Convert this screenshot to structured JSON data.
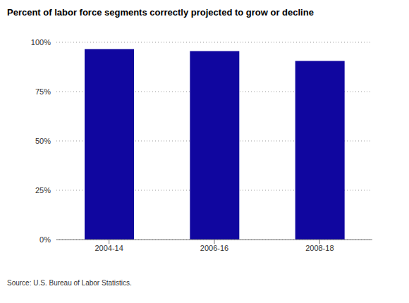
{
  "chart_data": {
    "type": "bar",
    "title": "Percent of labor force segments correctly projected to grow or decline",
    "categories": [
      "2004-14",
      "2006-16",
      "2008-18"
    ],
    "values": [
      96.5,
      95.5,
      90.5
    ],
    "color": "#10069f",
    "ylim": [
      0,
      100
    ],
    "yticks": [
      {
        "value": 0,
        "label": "0%"
      },
      {
        "value": 25,
        "label": "25%"
      },
      {
        "value": 50,
        "label": "50%"
      },
      {
        "value": 75,
        "label": "75%"
      },
      {
        "value": 100,
        "label": "100%"
      }
    ],
    "grid": true,
    "source": "Source: U.S. Bureau of Labor Statistics."
  }
}
